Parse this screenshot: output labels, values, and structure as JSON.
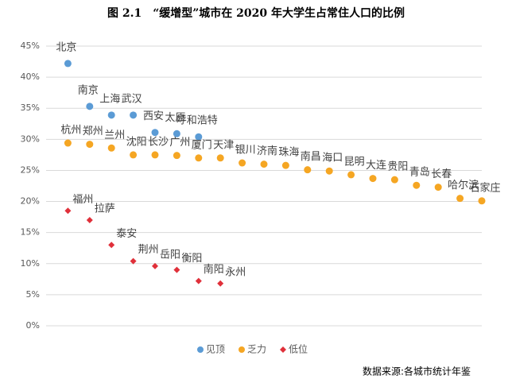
{
  "chart_data": {
    "type": "scatter",
    "title": "图 2.1　“缓增型”城市在 2020 年大学生占常住人口的比例",
    "source": "数据来源:各城市统计年鉴",
    "xlim": [
      0,
      20
    ],
    "ylim": [
      0,
      45
    ],
    "yticks": [
      {
        "value": 0,
        "label": "0%"
      },
      {
        "value": 5,
        "label": "5%"
      },
      {
        "value": 10,
        "label": "10%"
      },
      {
        "value": 15,
        "label": "15%"
      },
      {
        "value": 20,
        "label": "20%"
      },
      {
        "value": 25,
        "label": "25%"
      },
      {
        "value": 30,
        "label": "30%"
      },
      {
        "value": 35,
        "label": "35%"
      },
      {
        "value": 40,
        "label": "40%"
      },
      {
        "value": 45,
        "label": "45%"
      }
    ],
    "grid": true,
    "legend": "bottom",
    "series": [
      {
        "name": "见顶",
        "color": "#5b9bd5",
        "marker": "circle",
        "x": [
          1,
          2,
          3,
          4,
          5,
          6,
          7
        ],
        "values": [
          42.2,
          35.3,
          33.9,
          33.9,
          31.1,
          30.9,
          30.4
        ],
        "labels": [
          "北京",
          "南京",
          "上海",
          "武汉",
          "西安",
          "太原",
          "呼和浩特"
        ]
      },
      {
        "name": "乏力",
        "color": "#f5a623",
        "marker": "circle",
        "x": [
          1,
          2,
          3,
          4,
          5,
          6,
          7,
          8,
          9,
          10,
          11,
          12,
          13,
          14,
          15,
          16,
          17,
          18,
          19,
          20
        ],
        "values": [
          29.4,
          29.2,
          28.6,
          27.5,
          27.5,
          27.4,
          27.0,
          27.0,
          26.2,
          26.0,
          25.8,
          25.1,
          24.9,
          24.3,
          23.7,
          23.5,
          22.6,
          22.3,
          20.5,
          20.1
        ],
        "labels": [
          "杭州",
          "郑州",
          "兰州",
          "沈阳",
          "长沙",
          "广州",
          "厦门",
          "天津",
          "银川",
          "济南",
          "珠海",
          "南昌",
          "海口",
          "昆明",
          "大连",
          "贵阳",
          "青岛",
          "长春",
          "哈尔滨",
          "石家庄"
        ]
      },
      {
        "name": "低位",
        "color": "#e0303a",
        "marker": "diamond",
        "x": [
          1,
          2,
          3,
          4,
          5,
          6,
          7,
          8
        ],
        "values": [
          18.5,
          17.0,
          13.0,
          10.4,
          9.6,
          9.0,
          7.2,
          6.8
        ],
        "labels": [
          "福州",
          "拉萨",
          "泰安",
          "荆州",
          "岳阳",
          "衡阳",
          "南阳",
          "永州"
        ]
      }
    ]
  }
}
